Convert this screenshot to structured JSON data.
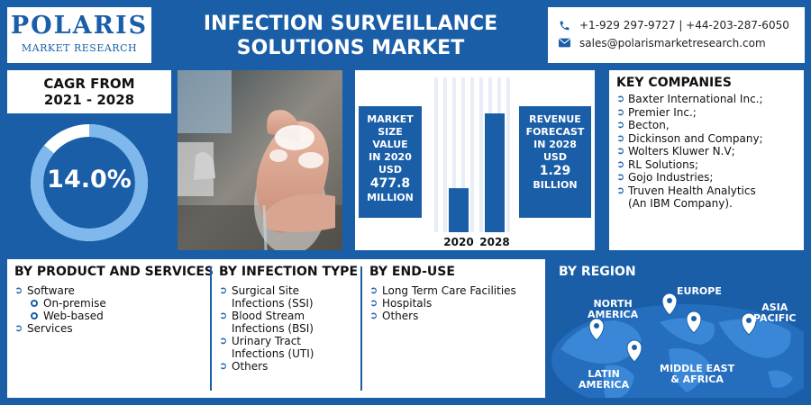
{
  "header": {
    "brand": "POLARIS",
    "brand_sub": "MARKET RESEARCH",
    "title_line1": "INFECTION SURVEILLANCE",
    "title_line2": "SOLUTIONS MARKET",
    "phone": "+1-929 297-9727 | +44-203-287-6050",
    "email": "sales@polarismarketresearch.com",
    "phone_icon": "phone-icon",
    "email_icon": "envelope-icon"
  },
  "cagr": {
    "label_line1": "CAGR FROM",
    "label_line2": "2021 - 2028",
    "value": "14.0%",
    "ring_fill_fraction": 0.86
  },
  "market": {
    "left_line1": "MARKET",
    "left_line2": "SIZE",
    "left_line3": "VALUE",
    "left_line4": "IN 2020",
    "left_line5": "USD",
    "left_value": "477.8",
    "left_unit": "MILLION",
    "right_line1": "REVENUE",
    "right_line2": "FORECAST",
    "right_line3": "IN 2028",
    "right_line4": "USD",
    "right_value": "1.29",
    "right_unit": "BILLION"
  },
  "chart_data": {
    "type": "bar",
    "categories": [
      "2020",
      "2028"
    ],
    "values": [
      477.8,
      1290
    ],
    "title": "",
    "xlabel": "",
    "ylabel": ""
  },
  "companies": {
    "title": "KEY COMPANIES",
    "items": [
      "Baxter International Inc.;",
      "Premier Inc.;",
      "Becton,",
      "Dickinson and Company;",
      "Wolters Kluwer N.V;",
      "RL Solutions;",
      "Gojo Industries;",
      "Truven Health Analytics",
      "(An IBM Company)."
    ]
  },
  "segments": {
    "product": {
      "title": "BY PRODUCT AND SERVICES",
      "software": "Software",
      "on_premise": "On-premise",
      "web_based": "Web-based",
      "services": "Services"
    },
    "infection": {
      "title": "BY INFECTION TYPE",
      "ssi_1": "Surgical Site",
      "ssi_2": "Infections (SSI)",
      "bsi_1": "Blood Stream",
      "bsi_2": "Infections (BSI)",
      "uti_1": "Urinary Tract",
      "uti_2": "Infections (UTI)",
      "others": "Others"
    },
    "enduse": {
      "title": "BY END-USE",
      "ltc": "Long Term Care Facilities",
      "hospitals": "Hospitals",
      "others": "Others"
    }
  },
  "region": {
    "title": "BY REGION",
    "north_america_1": "NORTH",
    "north_america_2": "AMERICA",
    "europe": "EUROPE",
    "asia_1": "ASIA",
    "asia_2": "PACIFIC",
    "latin_1": "LATIN",
    "latin_2": "AMERICA",
    "mea_1": "MIDDLE EAST",
    "mea_2": "& AFRICA"
  },
  "colors": {
    "brand_blue": "#1a5ea8",
    "ring_light": "#7fb8ec"
  }
}
